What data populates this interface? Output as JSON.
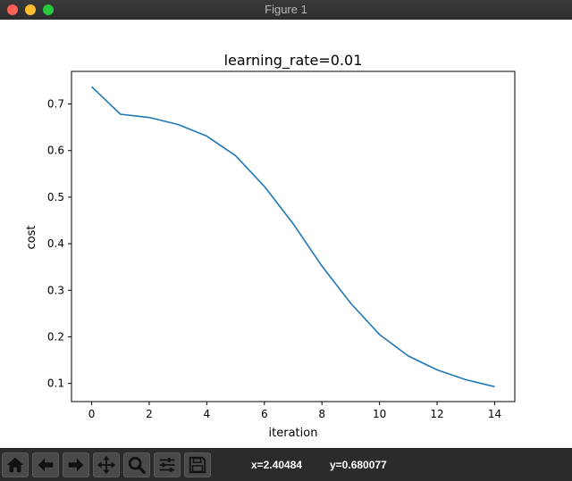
{
  "window": {
    "title": "Figure 1"
  },
  "toolbar": {
    "buttons": [
      {
        "name": "home-icon"
      },
      {
        "name": "back-arrow-icon"
      },
      {
        "name": "forward-arrow-icon"
      },
      {
        "name": "pan-move-icon"
      },
      {
        "name": "zoom-magnifier-icon"
      },
      {
        "name": "subplots-sliders-icon"
      },
      {
        "name": "save-floppy-icon"
      }
    ],
    "coord_x": "x=2.40484",
    "coord_y": "y=0.680077"
  },
  "chart_data": {
    "type": "line",
    "title": "learning_rate=0.01",
    "xlabel": "iteration",
    "ylabel": "cost",
    "xlim": [
      -0.7,
      14.7
    ],
    "ylim": [
      0.061,
      0.77
    ],
    "x_ticks": [
      0,
      2,
      4,
      6,
      8,
      10,
      12,
      14
    ],
    "y_ticks": [
      0.1,
      0.2,
      0.3,
      0.4,
      0.5,
      0.6,
      0.7
    ],
    "series": [
      {
        "color": "#1f77b4",
        "x": [
          0,
          1,
          2,
          3,
          4,
          5,
          6,
          7,
          8,
          9,
          10,
          11,
          12,
          13,
          14
        ],
        "values": [
          0.737,
          0.678,
          0.671,
          0.656,
          0.631,
          0.589,
          0.523,
          0.443,
          0.352,
          0.272,
          0.205,
          0.159,
          0.129,
          0.108,
          0.093
        ]
      }
    ],
    "grid": false,
    "legend": "none"
  }
}
